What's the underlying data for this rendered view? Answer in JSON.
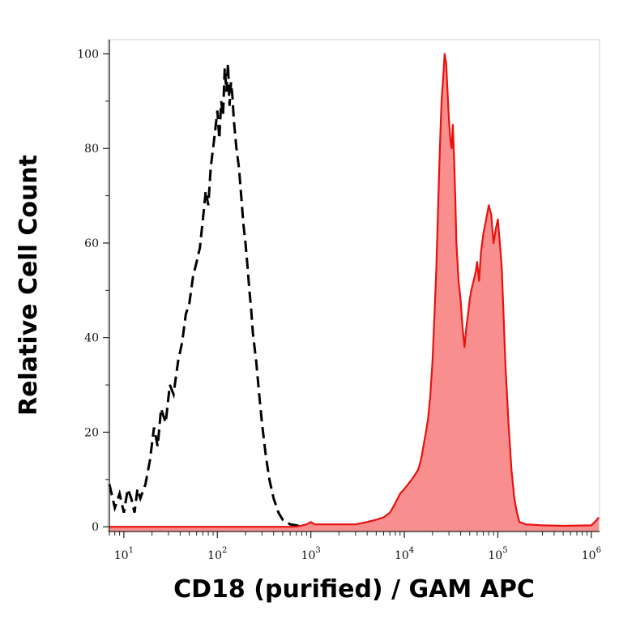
{
  "chart_data": {
    "type": "area",
    "xlabel": "CD18 (purified) / GAM APC",
    "ylabel": "Relative Cell Count",
    "xscale": "log",
    "xlim": [
      7,
      1200000
    ],
    "ylim": [
      -1,
      103
    ],
    "y_ticks": [
      {
        "value": 0,
        "label": "0"
      },
      {
        "value": 20,
        "label": "20"
      },
      {
        "value": 40,
        "label": "40"
      },
      {
        "value": 60,
        "label": "60"
      },
      {
        "value": 80,
        "label": "80"
      },
      {
        "value": 100,
        "label": "100"
      }
    ],
    "x_ticks": [
      {
        "value": 10,
        "base": "10",
        "exp": "1"
      },
      {
        "value": 100,
        "base": "10",
        "exp": "2"
      },
      {
        "value": 1000,
        "base": "10",
        "exp": "3"
      },
      {
        "value": 10000,
        "base": "10",
        "exp": "4"
      },
      {
        "value": 100000,
        "base": "10",
        "exp": "5"
      },
      {
        "value": 1000000,
        "base": "10",
        "exp": "6"
      }
    ],
    "grid": false,
    "legend": "none",
    "colors": {
      "control": "#000000",
      "stained_line": "#e8120c",
      "stained_fill": "#f98e8e",
      "axis": "#222222"
    },
    "series": [
      {
        "style": "dashed-outline",
        "x": [
          7,
          8,
          9,
          10,
          11,
          12,
          13,
          14,
          15,
          17,
          19,
          21,
          23,
          25,
          28,
          31,
          34,
          38,
          42,
          46,
          50,
          55,
          60,
          65,
          70,
          75,
          80,
          85,
          90,
          95,
          100,
          105,
          110,
          115,
          120,
          125,
          130,
          135,
          140,
          145,
          150,
          160,
          170,
          180,
          190,
          200,
          210,
          220,
          230,
          240,
          260,
          280,
          300,
          330,
          360,
          400,
          450,
          500,
          550,
          600,
          700,
          800
        ],
        "y": [
          9,
          4,
          7,
          3,
          8,
          6,
          3,
          8,
          6,
          9,
          14,
          21,
          17,
          25,
          22,
          30,
          28,
          35,
          39,
          45,
          47,
          53,
          56,
          59,
          65,
          71,
          68,
          76,
          80,
          84,
          88,
          82,
          90,
          87,
          97,
          92,
          98,
          89,
          94,
          91,
          86,
          80,
          76,
          70,
          64,
          60,
          55,
          50,
          46,
          41,
          35,
          28,
          22,
          15,
          10,
          6,
          3,
          1.5,
          1,
          0.5,
          0.3,
          0
        ]
      },
      {
        "style": "filled",
        "x": [
          7,
          10,
          20,
          50,
          100,
          300,
          700,
          900,
          1000,
          1100,
          2000,
          3000,
          4000,
          5000,
          6000,
          7000,
          7500,
          8000,
          8500,
          9000,
          10000,
          11000,
          12000,
          13000,
          14000,
          15000,
          16000,
          17000,
          18000,
          19000,
          20000,
          21000,
          22000,
          23000,
          24000,
          25000,
          26000,
          27000,
          28000,
          29000,
          30000,
          31000,
          32000,
          33000,
          34000,
          35000,
          36000,
          38000,
          40000,
          42000,
          44000,
          46000,
          48000,
          50000,
          52000,
          55000,
          58000,
          60000,
          63000,
          66000,
          70000,
          75000,
          80000,
          85000,
          90000,
          95000,
          100000,
          105000,
          110000,
          115000,
          120000,
          130000,
          140000,
          150000,
          160000,
          170000,
          200000,
          300000,
          500000,
          1000000,
          1150000,
          1200000
        ],
        "y": [
          0,
          0,
          0,
          0,
          0,
          0,
          0,
          0.5,
          1,
          0.5,
          0.5,
          0.5,
          1,
          1.5,
          2,
          3,
          4,
          5,
          6,
          7,
          8,
          9,
          10,
          11,
          12,
          14,
          17,
          20,
          23,
          28,
          35,
          45,
          55,
          68,
          80,
          90,
          95,
          100,
          98,
          92,
          86,
          82,
          80,
          85,
          78,
          70,
          60,
          52,
          48,
          42,
          38,
          42,
          45,
          48,
          50,
          52,
          54,
          56,
          52,
          58,
          62,
          65,
          68,
          66,
          60,
          63,
          65,
          60,
          55,
          45,
          35,
          22,
          12,
          6,
          3,
          1,
          0.5,
          0.3,
          0.2,
          0.3,
          1.5,
          2
        ]
      }
    ]
  }
}
